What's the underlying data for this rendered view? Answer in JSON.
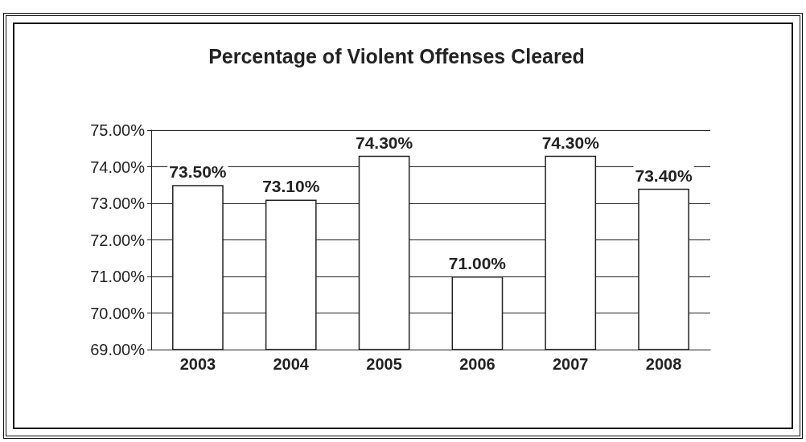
{
  "chart_data": {
    "type": "bar",
    "title": "Percentage of Violent Offenses Cleared",
    "categories": [
      "2003",
      "2004",
      "2005",
      "2006",
      "2007",
      "2008"
    ],
    "values": [
      73.5,
      73.1,
      74.3,
      71.0,
      74.3,
      73.4
    ],
    "value_labels": [
      "73.50%",
      "73.10%",
      "74.30%",
      "71.00%",
      "74.30%",
      "73.40%"
    ],
    "color": "#ffffff",
    "ylim": [
      69,
      75
    ],
    "yticks": [
      {
        "value": 69,
        "label": "69.00%"
      },
      {
        "value": 70,
        "label": "70.00%"
      },
      {
        "value": 71,
        "label": "71.00%"
      },
      {
        "value": 72,
        "label": "72.00%"
      },
      {
        "value": 73,
        "label": "73.00%"
      },
      {
        "value": 74,
        "label": "74.00%"
      },
      {
        "value": 75,
        "label": "75.00%"
      }
    ],
    "grid": "y"
  }
}
